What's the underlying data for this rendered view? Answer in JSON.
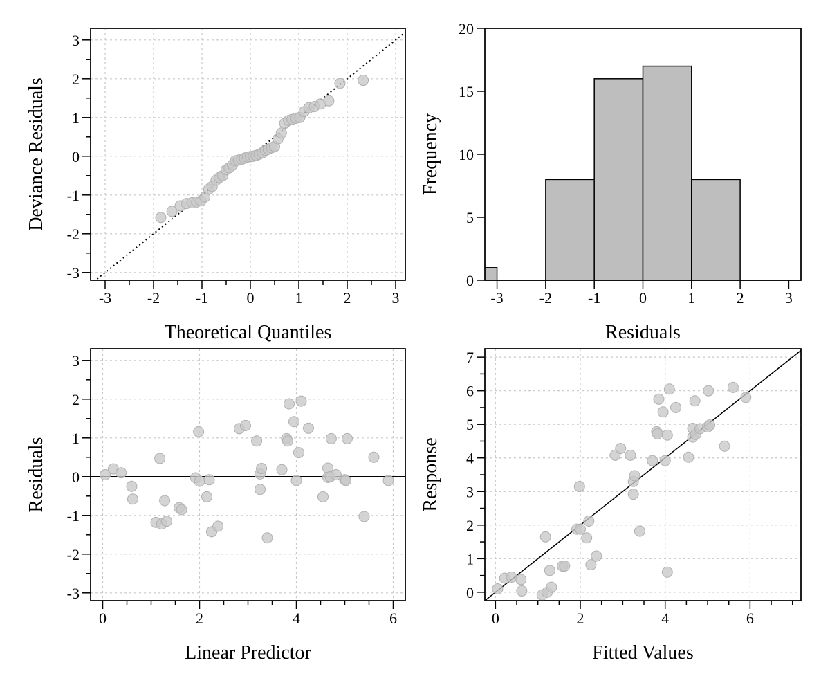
{
  "chart_data": [
    {
      "type": "scatter",
      "id": "qq",
      "xlabel": "Theoretical Quantiles",
      "ylabel": "Deviance Residuals",
      "xlim": [
        -3.3,
        3.2
      ],
      "ylim": [
        -3.2,
        3.3
      ],
      "xticks": [
        -3,
        -2,
        -1,
        0,
        1,
        2,
        3
      ],
      "yticks": [
        -3,
        -2,
        -1,
        0,
        1,
        2,
        3
      ],
      "minor_step": 0.5,
      "grid": true,
      "reference_line": {
        "style": "dotted",
        "slope": 1,
        "intercept": 0
      },
      "points": [
        [
          -1.85,
          -1.58
        ],
        [
          -1.62,
          -1.42
        ],
        [
          -1.45,
          -1.28
        ],
        [
          -1.32,
          -1.22
        ],
        [
          -1.21,
          -1.2
        ],
        [
          -1.11,
          -1.18
        ],
        [
          -1.02,
          -1.15
        ],
        [
          -0.94,
          -1.05
        ],
        [
          -0.86,
          -0.85
        ],
        [
          -0.79,
          -0.78
        ],
        [
          -0.71,
          -0.62
        ],
        [
          -0.64,
          -0.55
        ],
        [
          -0.57,
          -0.5
        ],
        [
          -0.5,
          -0.35
        ],
        [
          -0.44,
          -0.3
        ],
        [
          -0.37,
          -0.22
        ],
        [
          -0.31,
          -0.12
        ],
        [
          -0.25,
          -0.1
        ],
        [
          -0.18,
          -0.08
        ],
        [
          -0.12,
          -0.05
        ],
        [
          -0.06,
          -0.02
        ],
        [
          0.0,
          -0.01
        ],
        [
          0.06,
          0.0
        ],
        [
          0.12,
          0.02
        ],
        [
          0.18,
          0.05
        ],
        [
          0.25,
          0.09
        ],
        [
          0.31,
          0.15
        ],
        [
          0.37,
          0.18
        ],
        [
          0.44,
          0.22
        ],
        [
          0.5,
          0.25
        ],
        [
          0.57,
          0.45
        ],
        [
          0.64,
          0.6
        ],
        [
          0.71,
          0.85
        ],
        [
          0.79,
          0.92
        ],
        [
          0.86,
          0.95
        ],
        [
          0.94,
          0.98
        ],
        [
          1.02,
          1.0
        ],
        [
          1.11,
          1.15
        ],
        [
          1.21,
          1.25
        ],
        [
          1.32,
          1.28
        ],
        [
          1.45,
          1.35
        ],
        [
          1.62,
          1.43
        ],
        [
          1.85,
          1.88
        ],
        [
          2.33,
          1.96
        ]
      ]
    },
    {
      "type": "bar",
      "id": "hist",
      "xlabel": "Residuals",
      "ylabel": "Frequency",
      "xlim": [
        -3.25,
        3.25
      ],
      "ylim": [
        0,
        20
      ],
      "xticks": [
        -3,
        -2,
        -1,
        0,
        1,
        2,
        3
      ],
      "yticks": [
        0,
        5,
        10,
        15,
        20
      ],
      "grid": false,
      "bins": [
        [
          -4,
          -3
        ],
        [
          -3,
          -2
        ],
        [
          -2,
          -1
        ],
        [
          -1,
          0
        ],
        [
          0,
          1
        ],
        [
          1,
          2
        ]
      ],
      "values": [
        1,
        0,
        8,
        16,
        17,
        8
      ]
    },
    {
      "type": "scatter",
      "id": "resid_vs_lp",
      "xlabel": "Linear Predictor",
      "ylabel": "Residuals",
      "xlim": [
        -0.25,
        6.25
      ],
      "ylim": [
        -3.2,
        3.3
      ],
      "xticks": [
        0,
        2,
        4,
        6
      ],
      "yticks": [
        -3,
        -2,
        -1,
        0,
        1,
        2,
        3
      ],
      "minor_step_x": 0.5,
      "minor_step_y": 0.5,
      "grid": true,
      "reference_line": {
        "style": "solid",
        "slope": 0,
        "intercept": 0
      },
      "points": [
        [
          0.05,
          0.05
        ],
        [
          0.22,
          0.2
        ],
        [
          0.38,
          0.1
        ],
        [
          0.6,
          -0.25
        ],
        [
          0.62,
          -0.58
        ],
        [
          1.1,
          -1.18
        ],
        [
          1.18,
          0.47
        ],
        [
          1.22,
          -1.22
        ],
        [
          1.28,
          -0.62
        ],
        [
          1.32,
          -1.15
        ],
        [
          1.58,
          -0.8
        ],
        [
          1.63,
          -0.85
        ],
        [
          1.92,
          -0.03
        ],
        [
          1.98,
          1.16
        ],
        [
          2.0,
          -0.12
        ],
        [
          2.15,
          -0.52
        ],
        [
          2.2,
          -0.08
        ],
        [
          2.25,
          -1.42
        ],
        [
          2.38,
          -1.28
        ],
        [
          2.82,
          1.24
        ],
        [
          2.95,
          1.32
        ],
        [
          3.18,
          0.92
        ],
        [
          3.25,
          0.07
        ],
        [
          3.28,
          0.21
        ],
        [
          3.25,
          -0.33
        ],
        [
          3.4,
          -1.58
        ],
        [
          3.7,
          0.18
        ],
        [
          3.8,
          0.98
        ],
        [
          3.82,
          0.92
        ],
        [
          3.85,
          1.88
        ],
        [
          3.95,
          1.42
        ],
        [
          4.0,
          -0.1
        ],
        [
          4.05,
          0.62
        ],
        [
          4.1,
          1.95
        ],
        [
          4.25,
          1.25
        ],
        [
          4.55,
          -0.52
        ],
        [
          4.65,
          0.22
        ],
        [
          4.65,
          -0.02
        ],
        [
          4.7,
          0.0
        ],
        [
          4.72,
          0.98
        ],
        [
          4.82,
          0.05
        ],
        [
          5.0,
          -0.08
        ],
        [
          5.02,
          -0.1
        ],
        [
          5.05,
          0.98
        ],
        [
          5.4,
          -1.03
        ],
        [
          5.6,
          0.5
        ],
        [
          5.9,
          -0.1
        ]
      ]
    },
    {
      "type": "scatter",
      "id": "response_vs_fitted",
      "xlabel": "Fitted Values",
      "ylabel": "Response",
      "xlim": [
        -0.25,
        7.2
      ],
      "ylim": [
        -0.25,
        7.25
      ],
      "xticks": [
        0,
        2,
        4,
        6
      ],
      "yticks": [
        0,
        1,
        2,
        3,
        4,
        5,
        6,
        7
      ],
      "minor_step_x": 0.5,
      "minor_step_y": 0.5,
      "grid": true,
      "reference_line": {
        "style": "solid",
        "slope": 1,
        "intercept": 0
      },
      "points": [
        [
          0.05,
          0.1
        ],
        [
          0.22,
          0.42
        ],
        [
          0.38,
          0.45
        ],
        [
          0.6,
          0.38
        ],
        [
          0.62,
          0.04
        ],
        [
          1.1,
          -0.08
        ],
        [
          1.18,
          1.65
        ],
        [
          1.22,
          0.0
        ],
        [
          1.28,
          0.65
        ],
        [
          1.32,
          0.15
        ],
        [
          1.58,
          0.78
        ],
        [
          1.63,
          0.78
        ],
        [
          1.92,
          1.88
        ],
        [
          1.98,
          3.15
        ],
        [
          2.0,
          1.88
        ],
        [
          2.15,
          1.62
        ],
        [
          2.2,
          2.12
        ],
        [
          2.25,
          0.82
        ],
        [
          2.38,
          1.08
        ],
        [
          2.82,
          4.08
        ],
        [
          2.95,
          4.28
        ],
        [
          3.18,
          4.08
        ],
        [
          3.25,
          3.3
        ],
        [
          3.28,
          3.47
        ],
        [
          3.25,
          2.92
        ],
        [
          3.4,
          1.82
        ],
        [
          3.7,
          3.92
        ],
        [
          3.8,
          4.78
        ],
        [
          3.82,
          4.72
        ],
        [
          3.85,
          5.75
        ],
        [
          3.95,
          5.37
        ],
        [
          4.0,
          3.92
        ],
        [
          4.05,
          4.68
        ],
        [
          4.1,
          6.05
        ],
        [
          4.25,
          5.5
        ],
        [
          4.55,
          4.02
        ],
        [
          4.65,
          4.88
        ],
        [
          4.65,
          4.62
        ],
        [
          4.7,
          5.7
        ],
        [
          4.72,
          4.7
        ],
        [
          4.82,
          4.87
        ],
        [
          5.0,
          4.92
        ],
        [
          5.02,
          6.0
        ],
        [
          5.05,
          4.98
        ],
        [
          5.4,
          4.35
        ],
        [
          5.6,
          6.1
        ],
        [
          5.9,
          5.8
        ],
        [
          4.05,
          0.6
        ]
      ]
    }
  ]
}
